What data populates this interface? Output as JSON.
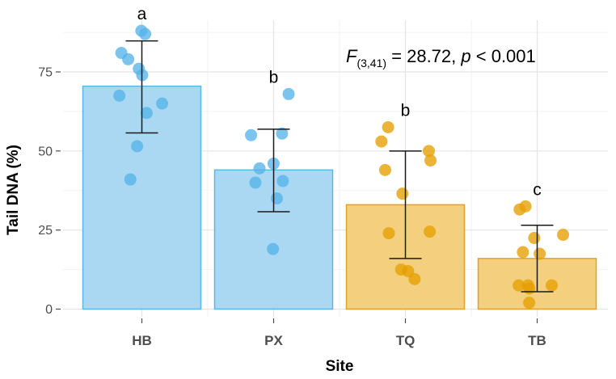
{
  "chart_data": {
    "type": "bar",
    "xlabel": "Site",
    "ylabel": "Tail DNA (%)",
    "ylim": [
      0,
      90
    ],
    "yticks": [
      0,
      25,
      50,
      75
    ],
    "grid": true,
    "categories": [
      "HB",
      "PX",
      "TQ",
      "TB"
    ],
    "values": [
      70.5,
      44,
      33,
      16
    ],
    "error_low": [
      55.7,
      30.8,
      16,
      5.5
    ],
    "error_high": [
      84.8,
      56.9,
      50,
      26.5
    ],
    "significance": [
      "a",
      "b",
      "b",
      "c"
    ],
    "bar_colors": [
      "#aad8f2",
      "#aad8f2",
      "#f4cf7e",
      "#f4cf7e"
    ],
    "edge_colors": [
      "#5bb7e6",
      "#5bb7e6",
      "#e0a32a",
      "#e0a32a"
    ],
    "point_colors": [
      "#56b4e9",
      "#56b4e9",
      "#e69f00",
      "#e69f00"
    ],
    "points": [
      [
        88,
        87,
        81,
        79,
        76,
        74,
        67.5,
        65,
        62,
        51.5,
        41
      ],
      [
        68,
        55.5,
        55,
        46,
        44.5,
        40.5,
        40,
        35,
        19
      ],
      [
        57.5,
        53,
        50,
        47,
        44,
        36.5,
        24.5,
        24,
        12.5,
        12,
        9.5
      ],
      [
        32.5,
        31.5,
        23.5,
        22.5,
        18,
        17.5,
        7.5,
        7.5,
        7.5,
        6.5,
        2
      ]
    ],
    "annotation": {
      "f_symbol": "F",
      "df": "(3,41)",
      "f_rest": " = 28.72, ",
      "p_symbol": "p",
      "p_rest": " < 0.001"
    }
  }
}
